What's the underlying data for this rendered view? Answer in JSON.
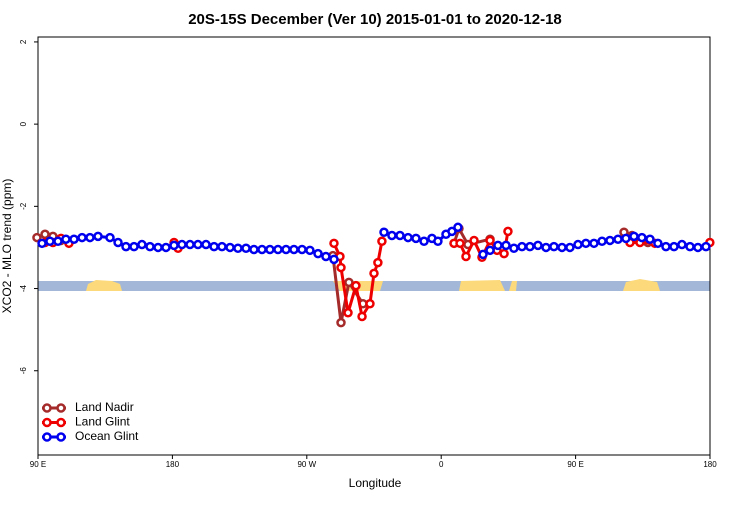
{
  "chart_data": {
    "type": "line",
    "title": "20S-15S December (Ver 10)   2015-01-01 to 2020-12-18",
    "x_label": "Longitude",
    "y_label": "XCO2 - MLO trend (ppm)",
    "xlim": [
      90,
      540
    ],
    "ylim": [
      -8.05,
      2.12
    ],
    "xticks": [
      {
        "value": 90,
        "label": "90 E"
      },
      180,
      {
        "value": 270,
        "label": "90 W"
      },
      {
        "value": 360,
        "label": "0"
      },
      {
        "value": 450,
        "label": "90 E"
      },
      180
    ],
    "yticks": [
      2,
      0,
      -2,
      -4,
      -6
    ],
    "legend": "bottom-left",
    "series": [
      {
        "name": "Land Nadir",
        "color": "#a52a2a",
        "x": [
          89.3,
          94.7,
          100,
          105.4,
          110.7,
          null,
          287.5,
          292.9,
          298.2,
          307.6,
          null,
          368.6,
          371.9,
          377.9,
          392.7,
          null,
          482.4,
          487.8,
          494.4,
          498.4
        ],
        "values": [
          -2.76,
          -2.68,
          -2.73,
          -2.83,
          -2.88,
          null,
          -3.2,
          -4.83,
          -3.85,
          -4.37,
          null,
          -2.9,
          -2.54,
          -2.93,
          -2.8,
          null,
          -2.63,
          -2.71,
          -2.78,
          -2.88
        ]
      },
      {
        "name": "Land Glint",
        "color": "#ee0000",
        "x": [
          94.7,
          100,
          105.4,
          110.7,
          null,
          181.1,
          183.8,
          null,
          288.2,
          292.2,
          292.9,
          297.6,
          302.9,
          307,
          312.3,
          315,
          317.6,
          320.3,
          null,
          368.6,
          372.6,
          376.6,
          382,
          387.3,
          392.7,
          397.4,
          402.1,
          404.7,
          null,
          486.4,
          493.1,
          503.1,
          null,
          539.9
        ],
        "values": [
          -2.88,
          -2.88,
          -2.78,
          -2.9,
          null,
          -2.88,
          -3.02,
          null,
          -2.9,
          -3.22,
          -3.49,
          -4.59,
          -3.93,
          -4.68,
          -4.37,
          -3.63,
          -3.37,
          -2.85,
          null,
          -2.9,
          -2.9,
          -3.22,
          -2.83,
          -3.24,
          -2.83,
          -3.07,
          -3.15,
          -2.61,
          null,
          -2.88,
          -2.88,
          -2.9,
          null,
          -2.88
        ]
      },
      {
        "name": "Ocean Glint",
        "color": "#0000ee",
        "x": [
          92.7,
          98,
          103.4,
          108.7,
          114.1,
          119.5,
          124.8,
          130.2,
          138.2,
          143.6,
          148.9,
          154.3,
          159.6,
          165,
          170.4,
          175.7,
          181.1,
          186.4,
          191.8,
          197.1,
          202.5,
          207.9,
          213.2,
          218.6,
          223.9,
          229.3,
          234.6,
          240,
          245.3,
          250.7,
          256.1,
          261.4,
          266.8,
          272.1,
          277.5,
          282.8,
          288.2,
          null,
          321.7,
          327,
          332.4,
          337.8,
          343.1,
          348.5,
          353.8,
          357.8,
          363.2,
          367.2,
          371.2,
          null,
          388,
          392.7,
          398,
          403.4,
          408.7,
          414.1,
          419.4,
          424.8,
          430.2,
          435.5,
          440.9,
          446.2,
          451.6,
          456.9,
          462.3,
          467.7,
          473,
          478.4,
          483.7,
          489.1,
          494.4,
          499.8,
          505.1,
          510.5,
          515.9,
          521.2,
          526.6,
          531.9,
          537.3
        ],
        "values": [
          -2.9,
          -2.85,
          -2.85,
          -2.8,
          -2.8,
          -2.76,
          -2.76,
          -2.73,
          -2.76,
          -2.88,
          -2.98,
          -2.98,
          -2.93,
          -2.98,
          -3.0,
          -3.0,
          -2.95,
          -2.93,
          -2.93,
          -2.93,
          -2.93,
          -2.98,
          -2.98,
          -3.0,
          -3.02,
          -3.02,
          -3.05,
          -3.05,
          -3.05,
          -3.05,
          -3.05,
          -3.05,
          -3.05,
          -3.07,
          -3.15,
          -3.22,
          -3.29,
          null,
          -2.63,
          -2.71,
          -2.71,
          -2.76,
          -2.78,
          -2.85,
          -2.78,
          -2.85,
          -2.68,
          -2.61,
          -2.51,
          null,
          -3.17,
          -3.07,
          -2.95,
          -2.95,
          -3.02,
          -2.98,
          -2.98,
          -2.95,
          -3.0,
          -2.98,
          -3.0,
          -3.0,
          -2.93,
          -2.9,
          -2.9,
          -2.85,
          -2.83,
          -2.8,
          -2.78,
          -2.73,
          -2.76,
          -2.8,
          -2.9,
          -2.98,
          -2.98,
          -2.93,
          -2.98,
          -3.0,
          -2.98
        ]
      }
    ]
  }
}
